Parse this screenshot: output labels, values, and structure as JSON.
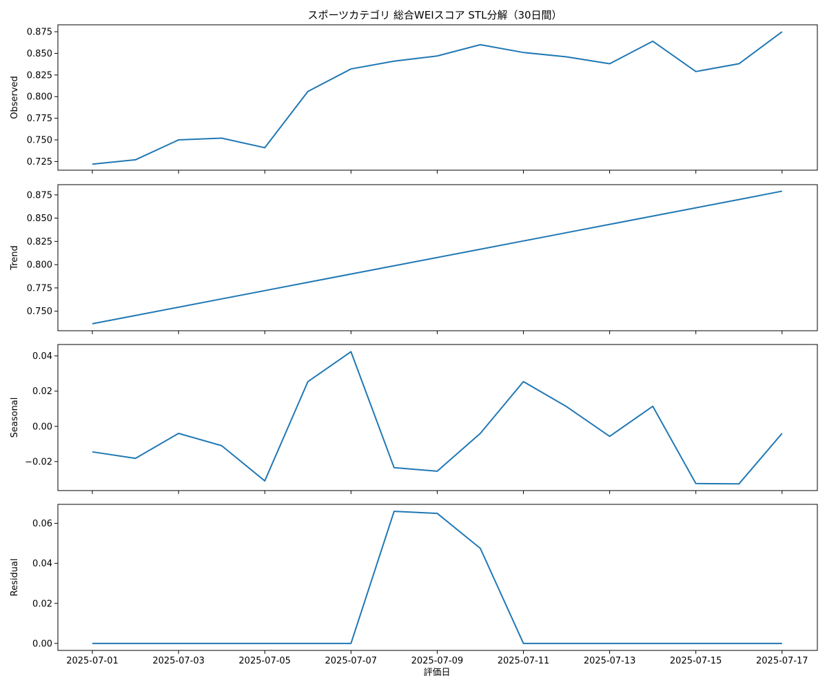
{
  "chart_data": {
    "type": "line",
    "title": "スポーツカテゴリ 総合WEIスコア STL分解（30日間）",
    "xlabel": "評価日",
    "x": [
      "2025-07-01",
      "2025-07-02",
      "2025-07-03",
      "2025-07-04",
      "2025-07-05",
      "2025-07-06",
      "2025-07-07",
      "2025-07-08",
      "2025-07-09",
      "2025-07-10",
      "2025-07-11",
      "2025-07-12",
      "2025-07-13",
      "2025-07-14",
      "2025-07-15",
      "2025-07-16",
      "2025-07-17"
    ],
    "x_tick_labels": [
      "2025-07-01",
      "2025-07-03",
      "2025-07-05",
      "2025-07-07",
      "2025-07-09",
      "2025-07-11",
      "2025-07-13",
      "2025-07-15",
      "2025-07-17"
    ],
    "line_color": "#1f77b4",
    "grid": false,
    "panels": [
      {
        "name": "observed",
        "ylabel": "Observed",
        "ylim": [
          0.715,
          0.883
        ],
        "y_ticks": [
          0.725,
          0.75,
          0.775,
          0.8,
          0.825,
          0.85,
          0.875
        ],
        "y_tick_labels": [
          "0.725",
          "0.750",
          "0.775",
          "0.800",
          "0.825",
          "0.850",
          "0.875"
        ],
        "values": [
          0.722,
          0.727,
          0.75,
          0.752,
          0.741,
          0.806,
          0.832,
          0.841,
          0.847,
          0.86,
          0.851,
          0.846,
          0.838,
          0.864,
          0.829,
          0.838,
          0.875
        ]
      },
      {
        "name": "trend",
        "ylabel": "Trend",
        "ylim": [
          0.729,
          0.886
        ],
        "y_ticks": [
          0.75,
          0.775,
          0.8,
          0.825,
          0.85,
          0.875
        ],
        "y_tick_labels": [
          "0.750",
          "0.775",
          "0.800",
          "0.825",
          "0.850",
          "0.875"
        ],
        "values": [
          0.7365,
          0.7454,
          0.7543,
          0.7632,
          0.7721,
          0.781,
          0.7899,
          0.7988,
          0.8077,
          0.8166,
          0.8255,
          0.8344,
          0.8433,
          0.8522,
          0.8611,
          0.87,
          0.879
        ]
      },
      {
        "name": "seasonal",
        "ylabel": "Seasonal",
        "ylim": [
          -0.0365,
          0.0465
        ],
        "y_ticks": [
          -0.02,
          0.0,
          0.02,
          0.04
        ],
        "y_tick_labels": [
          "−0.02",
          "0.00",
          "0.02",
          "0.04"
        ],
        "values": [
          -0.0145,
          -0.0182,
          -0.004,
          -0.011,
          -0.031,
          0.0254,
          0.0424,
          -0.0235,
          -0.0255,
          -0.004,
          0.0254,
          0.0112,
          -0.0057,
          0.0114,
          -0.0325,
          -0.0327,
          -0.004
        ]
      },
      {
        "name": "residual",
        "ylabel": "Residual",
        "ylim": [
          -0.0035,
          0.0695
        ],
        "y_ticks": [
          0.0,
          0.02,
          0.04,
          0.06
        ],
        "y_tick_labels": [
          "0.00",
          "0.02",
          "0.04",
          "0.06"
        ],
        "values": [
          0,
          0,
          0,
          0,
          0,
          0,
          0,
          0.066,
          0.065,
          0.0475,
          0,
          0,
          0,
          0,
          0,
          0,
          0
        ]
      }
    ]
  }
}
